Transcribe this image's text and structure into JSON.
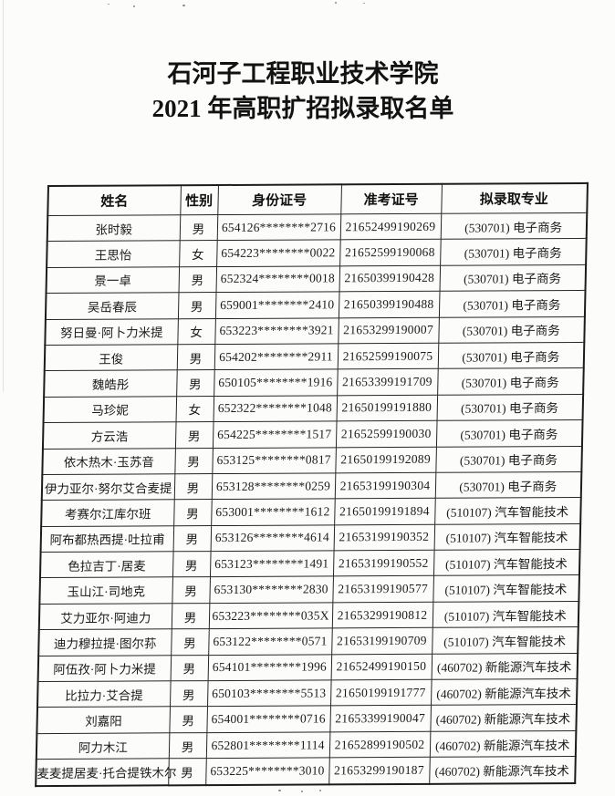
{
  "page": {
    "title_line1": "石河子工程职业技术学院",
    "title_line2": "2021 年高职扩招拟录取名单"
  },
  "table": {
    "columns": [
      "姓名",
      "性别",
      "身份证号",
      "准考证号",
      "拟录取专业"
    ],
    "rows": [
      [
        "张时毅",
        "男",
        "654126********2716",
        "21652499190269",
        "(530701) 电子商务"
      ],
      [
        "王思怡",
        "女",
        "654223********0022",
        "21652599190068",
        "(530701) 电子商务"
      ],
      [
        "景一卓",
        "男",
        "652324********0018",
        "21650399190428",
        "(530701) 电子商务"
      ],
      [
        "吴岳春辰",
        "男",
        "659001********2410",
        "21650399190488",
        "(530701) 电子商务"
      ],
      [
        "努日曼·阿卜力米提",
        "女",
        "653223********3921",
        "21653299190007",
        "(530701) 电子商务"
      ],
      [
        "王俊",
        "男",
        "654202********2911",
        "21652599190075",
        "(530701) 电子商务"
      ],
      [
        "魏皓彤",
        "男",
        "650105********1916",
        "21653399191709",
        "(530701) 电子商务"
      ],
      [
        "马珍妮",
        "女",
        "652322********1048",
        "21650199191880",
        "(530701) 电子商务"
      ],
      [
        "方云浩",
        "男",
        "654225********1517",
        "21652599190030",
        "(530701) 电子商务"
      ],
      [
        "依木热木·玉苏音",
        "男",
        "653125********0817",
        "21650199192089",
        "(530701) 电子商务"
      ],
      [
        "伊力亚尔·努尔艾合麦提",
        "男",
        "653128********0259",
        "21653199190304",
        "(530701) 电子商务"
      ],
      [
        "考赛尔江库尔班",
        "男",
        "653001********1612",
        "21650199191894",
        "(510107) 汽车智能技术"
      ],
      [
        "阿布都热西提·吐拉甫",
        "男",
        "653126********4614",
        "21653199190352",
        "(510107) 汽车智能技术"
      ],
      [
        "色拉吉丁·居麦",
        "男",
        "653123********1491",
        "21653199190552",
        "(510107) 汽车智能技术"
      ],
      [
        "玉山江·司地克",
        "男",
        "653130********2830",
        "21653199190577",
        "(510107) 汽车智能技术"
      ],
      [
        "艾力亚尔·阿迪力",
        "男",
        "653223********035X",
        "21653299190812",
        "(510107) 汽车智能技术"
      ],
      [
        "迪力穆拉提·图尔荪",
        "男",
        "653122********0571",
        "21653199190709",
        "(510107) 汽车智能技术"
      ],
      [
        "阿伍孜·阿卜力米提",
        "男",
        "654101********1996",
        "21652499190150",
        "(460702) 新能源汽车技术"
      ],
      [
        "比拉力·艾合提",
        "男",
        "650103********5513",
        "21650199191777",
        "(460702) 新能源汽车技术"
      ],
      [
        "刘嘉阳",
        "男",
        "654001********0716",
        "21653399190047",
        "(460702) 新能源汽车技术"
      ],
      [
        "阿力木江",
        "男",
        "652801********1114",
        "21652899190502",
        "(460702) 新能源汽车技术"
      ],
      [
        "麦麦提居麦·托合提铁木尔",
        "男",
        "653225********3010",
        "21653299190187",
        "(460702) 新能源汽车技术"
      ]
    ]
  }
}
